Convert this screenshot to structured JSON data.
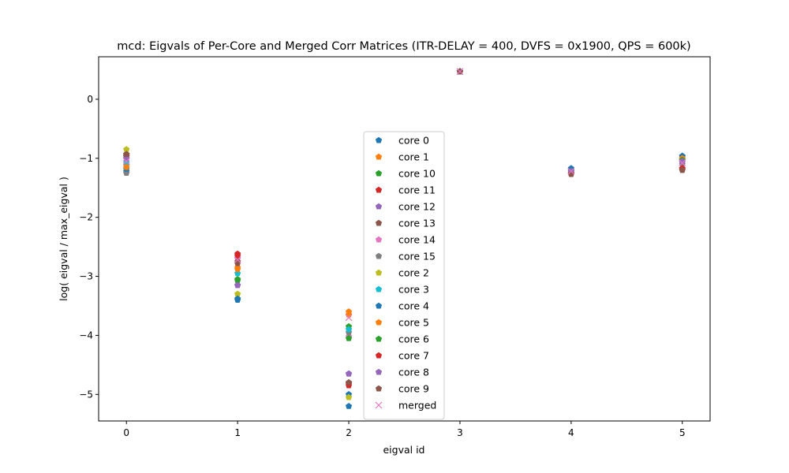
{
  "chart_data": {
    "type": "scatter",
    "title": "mcd: Eigvals of Per-Core and Merged Corr Matrices (ITR-DELAY = 400, DVFS = 0x1900, QPS = 600k)",
    "xlabel": "eigval id",
    "ylabel": "log( eigval / max_eigval )",
    "xlim": [
      -0.25,
      5.25
    ],
    "ylim": [
      -5.45,
      0.72
    ],
    "xticks": [
      0,
      1,
      2,
      3,
      4,
      5
    ],
    "yticks": [
      0,
      -1,
      -2,
      -3,
      -4,
      -5
    ],
    "grid": false,
    "legend_position": "center",
    "x": [
      0,
      1,
      2,
      3,
      4,
      5
    ],
    "series": [
      {
        "name": "core 0",
        "color": "#1f77b4",
        "marker": "pentagon",
        "values": [
          -1.22,
          -3.4,
          -5.0,
          0.47,
          -1.17,
          -0.96
        ]
      },
      {
        "name": "core 1",
        "color": "#ff7f0e",
        "marker": "pentagon",
        "values": [
          -1.12,
          -2.85,
          -3.6,
          0.47,
          -1.22,
          -1.0
        ]
      },
      {
        "name": "core 10",
        "color": "#2ca02c",
        "marker": "pentagon",
        "values": [
          -1.0,
          -3.05,
          -3.85,
          0.47,
          -1.22,
          -1.05
        ]
      },
      {
        "name": "core 11",
        "color": "#d62728",
        "marker": "pentagon",
        "values": [
          -0.95,
          -2.62,
          -4.85,
          0.47,
          -1.25,
          -1.18
        ]
      },
      {
        "name": "core 12",
        "color": "#9467bd",
        "marker": "pentagon",
        "values": [
          -0.97,
          -3.15,
          -4.65,
          0.47,
          -1.22,
          -1.02
        ]
      },
      {
        "name": "core 13",
        "color": "#8c564b",
        "marker": "pentagon",
        "values": [
          -0.93,
          -2.78,
          -4.8,
          0.47,
          -1.27,
          -1.2
        ]
      },
      {
        "name": "core 14",
        "color": "#e377c2",
        "marker": "pentagon",
        "values": [
          -1.05,
          -2.7,
          -4.02,
          0.47,
          -1.22,
          -1.07
        ]
      },
      {
        "name": "core 15",
        "color": "#7f7f7f",
        "marker": "pentagon",
        "values": [
          -1.25,
          -3.15,
          -3.95,
          0.47,
          -1.2,
          -1.1
        ]
      },
      {
        "name": "core 2",
        "color": "#bcbd22",
        "marker": "pentagon",
        "values": [
          -0.85,
          -3.3,
          -5.05,
          0.47,
          -1.2,
          -1.0
        ]
      },
      {
        "name": "core 3",
        "color": "#17becf",
        "marker": "pentagon",
        "values": [
          -1.08,
          -2.95,
          -3.9,
          0.47,
          -1.2,
          -1.02
        ]
      },
      {
        "name": "core 4",
        "color": "#1f77b4",
        "marker": "pentagon",
        "values": [
          -1.18,
          -3.38,
          -5.2,
          0.47,
          -1.18,
          -0.97
        ]
      },
      {
        "name": "core 5",
        "color": "#ff7f0e",
        "marker": "pentagon",
        "values": [
          -1.15,
          -2.88,
          -3.65,
          0.47,
          -1.25,
          -1.0
        ]
      },
      {
        "name": "core 6",
        "color": "#2ca02c",
        "marker": "pentagon",
        "values": [
          -0.97,
          -3.07,
          -4.05,
          0.47,
          -1.22,
          -1.03
        ]
      },
      {
        "name": "core 7",
        "color": "#d62728",
        "marker": "pentagon",
        "values": [
          -0.95,
          -2.65,
          -4.82,
          0.47,
          -1.26,
          -1.17
        ]
      },
      {
        "name": "core 8",
        "color": "#9467bd",
        "marker": "pentagon",
        "values": [
          -1.0,
          -3.15,
          -4.65,
          0.47,
          -1.22,
          -1.05
        ]
      },
      {
        "name": "core 9",
        "color": "#8c564b",
        "marker": "pentagon",
        "values": [
          -0.93,
          -2.75,
          -4.8,
          0.47,
          -1.27,
          -1.2
        ]
      },
      {
        "name": "merged",
        "color": "#e377c2",
        "marker": "x",
        "values": [
          -1.05,
          -2.72,
          -3.7,
          0.47,
          -1.22,
          -1.08
        ]
      }
    ]
  }
}
